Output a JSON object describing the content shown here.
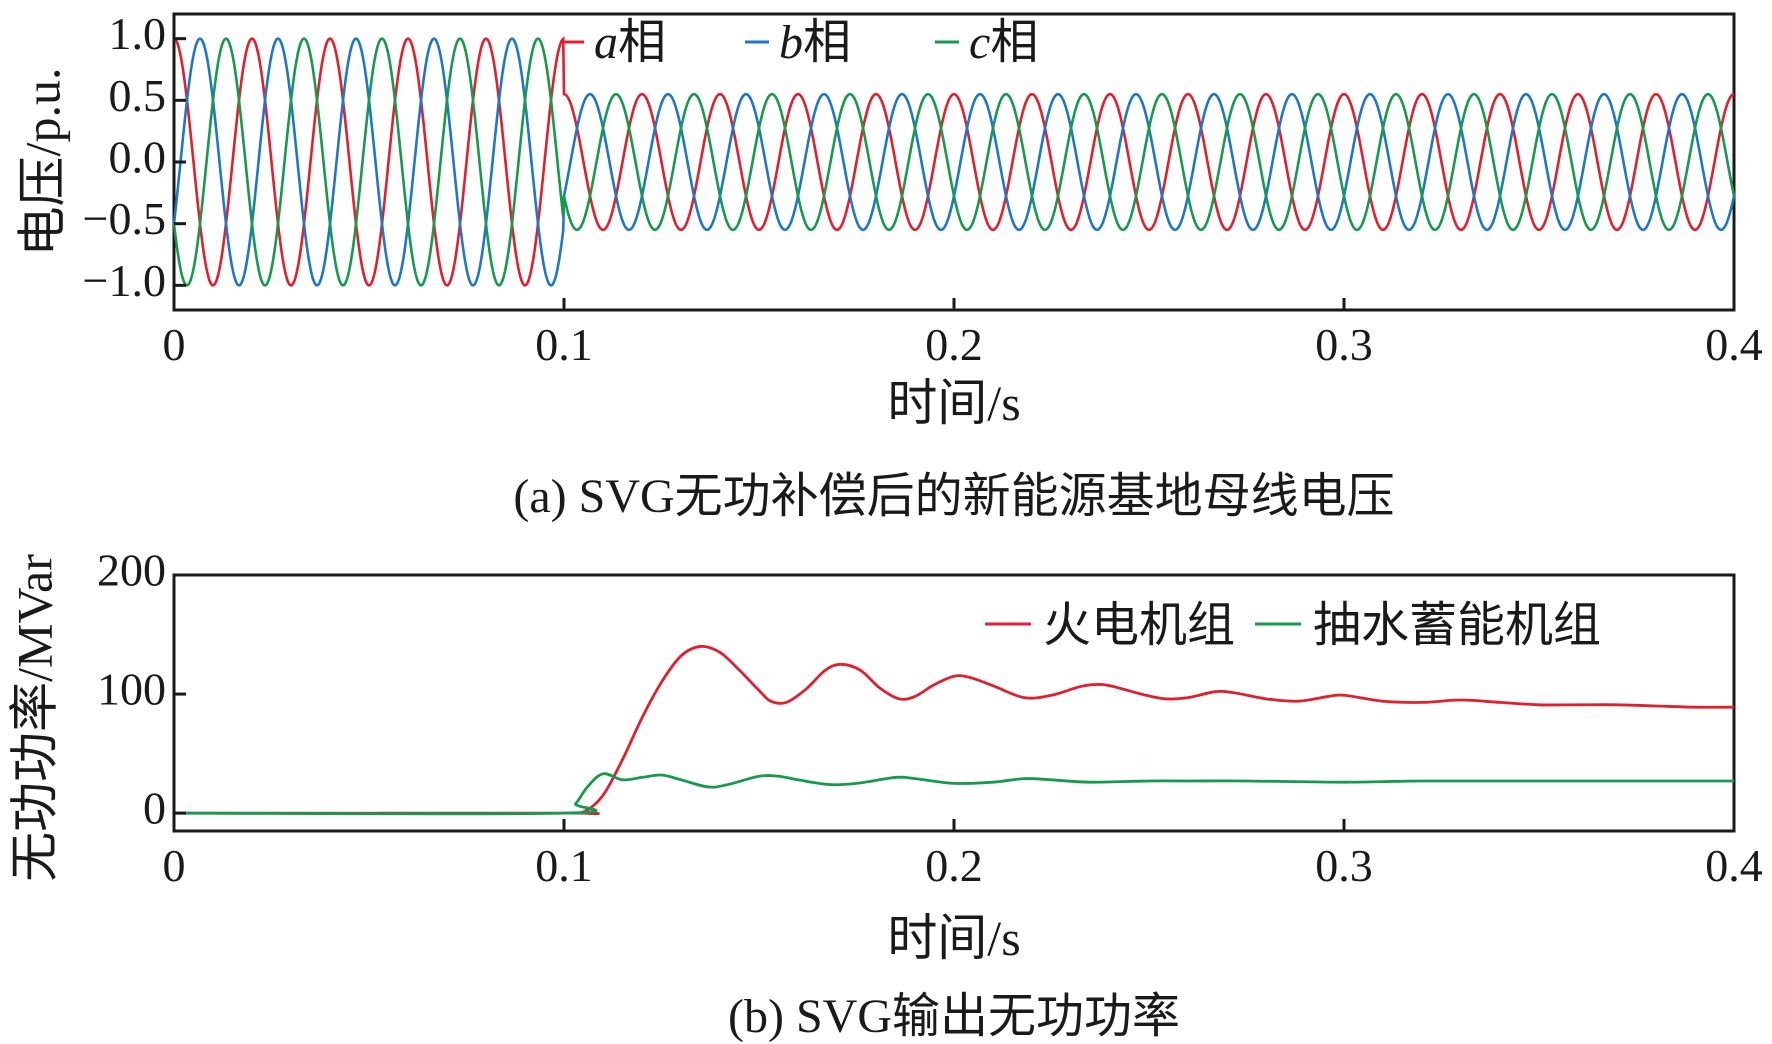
{
  "chart_data": [
    {
      "type": "line",
      "caption": "(a) SVG无功补偿后的新能源基地母线电压",
      "xlabel": "时间/s",
      "ylabel": "电压/p.u.",
      "xlim": [
        0,
        0.4
      ],
      "ylim": [
        -1.2,
        1.2
      ],
      "xticks": [
        0,
        0.1,
        0.2,
        0.3,
        0.4
      ],
      "xtick_labels": [
        "0",
        "0.1",
        "0.2",
        "0.3",
        "0.4"
      ],
      "yticks": [
        1.0,
        0.5,
        0.0,
        -0.5,
        -1.0
      ],
      "ytick_labels": [
        "1.0",
        "0.5",
        "0.0",
        "−0.5",
        "−1.0"
      ],
      "legend_position": "top",
      "grid": false,
      "signal": {
        "frequency_hz": 50,
        "step_time_s": 0.1,
        "amplitude_before_pu": 1.0,
        "amplitude_after_pu": 0.55,
        "sampling_step_s": 0.0002
      },
      "series": [
        {
          "name_prefix": "a",
          "name_suffix": "相",
          "color": "#e0202f",
          "phase_deg": 90
        },
        {
          "name_prefix": "b",
          "name_suffix": "相",
          "color": "#1f77c8",
          "phase_deg": -30
        },
        {
          "name_prefix": "c",
          "name_suffix": "相",
          "color": "#179a4e",
          "phase_deg": 210
        }
      ]
    },
    {
      "type": "line",
      "caption": "(b) SVG输出无功功率",
      "xlabel": "时间/s",
      "ylabel": "无功功率/MVar",
      "xlim": [
        0,
        0.4
      ],
      "ylim": [
        -15,
        200
      ],
      "xticks": [
        0,
        0.1,
        0.2,
        0.3,
        0.4
      ],
      "xtick_labels": [
        "0",
        "0.1",
        "0.2",
        "0.3",
        "0.4"
      ],
      "yticks": [
        200,
        100,
        0
      ],
      "ytick_labels": [
        "200",
        "100",
        "0"
      ],
      "legend_position": "top-right",
      "grid": false,
      "series": [
        {
          "name": "火电机组",
          "color": "#e0202f",
          "points": [
            [
              0,
              0
            ],
            [
              0.1,
              0
            ],
            [
              0.105,
              1
            ],
            [
              0.11,
              15
            ],
            [
              0.115,
              45
            ],
            [
              0.12,
              80
            ],
            [
              0.125,
              110
            ],
            [
              0.13,
              132
            ],
            [
              0.135,
              140
            ],
            [
              0.14,
              135
            ],
            [
              0.145,
              120
            ],
            [
              0.15,
              103
            ],
            [
              0.153,
              94
            ],
            [
              0.157,
              93
            ],
            [
              0.162,
              104
            ],
            [
              0.167,
              120
            ],
            [
              0.171,
              125
            ],
            [
              0.176,
              120
            ],
            [
              0.181,
              105
            ],
            [
              0.186,
              96
            ],
            [
              0.19,
              98
            ],
            [
              0.195,
              108
            ],
            [
              0.2,
              115
            ],
            [
              0.204,
              114
            ],
            [
              0.21,
              107
            ],
            [
              0.218,
              97
            ],
            [
              0.225,
              99
            ],
            [
              0.232,
              106
            ],
            [
              0.236,
              108
            ],
            [
              0.24,
              107
            ],
            [
              0.248,
              100
            ],
            [
              0.254,
              96
            ],
            [
              0.26,
              97
            ],
            [
              0.267,
              102
            ],
            [
              0.272,
              101
            ],
            [
              0.28,
              96
            ],
            [
              0.288,
              94
            ],
            [
              0.296,
              98
            ],
            [
              0.3,
              99
            ],
            [
              0.31,
              94
            ],
            [
              0.32,
              93
            ],
            [
              0.33,
              95
            ],
            [
              0.34,
              93
            ],
            [
              0.35,
              91
            ],
            [
              0.36,
              91
            ],
            [
              0.37,
              91
            ],
            [
              0.38,
              90
            ],
            [
              0.39,
              89
            ],
            [
              0.4,
              89
            ]
          ]
        },
        {
          "name": "抽水蓄能机组",
          "color": "#179a4e",
          "points": [
            [
              0,
              0
            ],
            [
              0.1,
              0
            ],
            [
              0.103,
              8
            ],
            [
              0.106,
              22
            ],
            [
              0.11,
              33
            ],
            [
              0.115,
              28
            ],
            [
              0.12,
              30
            ],
            [
              0.125,
              32
            ],
            [
              0.13,
              28
            ],
            [
              0.137,
              22
            ],
            [
              0.142,
              24
            ],
            [
              0.15,
              31
            ],
            [
              0.155,
              31
            ],
            [
              0.16,
              28
            ],
            [
              0.168,
              24
            ],
            [
              0.175,
              25
            ],
            [
              0.185,
              30
            ],
            [
              0.19,
              29
            ],
            [
              0.2,
              25
            ],
            [
              0.21,
              26
            ],
            [
              0.218,
              29
            ],
            [
              0.225,
              28
            ],
            [
              0.235,
              26
            ],
            [
              0.25,
              27
            ],
            [
              0.26,
              27
            ],
            [
              0.275,
              27
            ],
            [
              0.3,
              26
            ],
            [
              0.32,
              27
            ],
            [
              0.35,
              27
            ],
            [
              0.4,
              27
            ]
          ]
        }
      ]
    }
  ]
}
